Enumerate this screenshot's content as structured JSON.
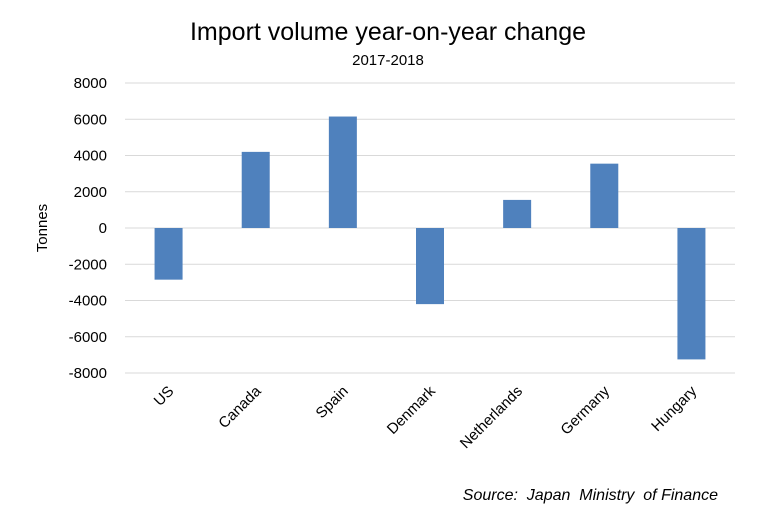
{
  "chart_data": {
    "type": "bar",
    "title": "Import volume year-on-year change",
    "subtitle": "2017-2018",
    "xlabel": "",
    "ylabel": "Tonnes",
    "categories": [
      "US",
      "Canada",
      "Spain",
      "Denmark",
      "Netherlands",
      "Germany",
      "Hungary"
    ],
    "values": [
      -2850,
      4200,
      6150,
      -4200,
      1550,
      3550,
      -7250
    ],
    "ylim": [
      -8000,
      8000
    ],
    "yticks": [
      8000,
      6000,
      4000,
      2000,
      0,
      -2000,
      -4000,
      -6000,
      -8000
    ],
    "ytick_labels": [
      "8000",
      "6000",
      "4000",
      "2000",
      "0",
      "-2000",
      "-4000",
      "-6000",
      "-8000"
    ],
    "grid": true,
    "legend": "none",
    "bar_color": "#4f81bd",
    "source": "Source:  Japan  Ministry  of Finance"
  }
}
